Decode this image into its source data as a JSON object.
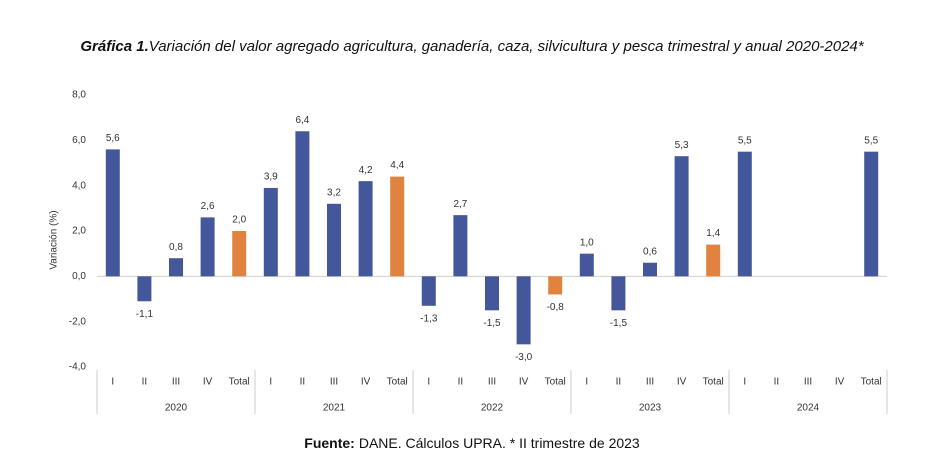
{
  "chart_data": {
    "type": "bar",
    "title_prefix": "Gráfica 1.",
    "title": "Variación del valor agregado agricultura, ganadería, caza, silvicultura y pesca trimestral y anual 2020-2024*",
    "ylabel": "Variación (%)",
    "source_prefix": "Fuente:",
    "source": "DANE. Cálculos UPRA. * II trimestre de 2023",
    "groups": [
      "2020",
      "2021",
      "2022",
      "2023",
      "2024"
    ],
    "categories": [
      "I",
      "II",
      "III",
      "IV",
      "Total",
      "I",
      "II",
      "III",
      "IV",
      "Total",
      "I",
      "II",
      "III",
      "IV",
      "Total",
      "I",
      "II",
      "III",
      "IV",
      "Total",
      "I",
      "II",
      "III",
      "IV",
      "Total"
    ],
    "values": [
      5.6,
      -1.1,
      0.8,
      2.6,
      2.0,
      3.9,
      6.4,
      3.2,
      4.2,
      4.4,
      -1.3,
      2.7,
      -1.5,
      -3.0,
      -0.8,
      1.0,
      -1.5,
      0.6,
      5.3,
      1.4,
      5.5,
      null,
      null,
      null,
      5.5
    ],
    "value_labels": [
      "5,6",
      "-1,1",
      "0,8",
      "2,6",
      "2,0",
      "3,9",
      "6,4",
      "3,2",
      "4,2",
      "4,4",
      "-1,3",
      "2,7",
      "-1,5",
      "-3,0",
      "-0,8",
      "1,0",
      "-1,5",
      "0,6",
      "5,3",
      "1,4",
      "5,5",
      null,
      null,
      null,
      "5,5"
    ],
    "colors": [
      "#44579a",
      "#44579a",
      "#44579a",
      "#44579a",
      "#e0833e",
      "#44579a",
      "#44579a",
      "#44579a",
      "#44579a",
      "#e0833e",
      "#44579a",
      "#44579a",
      "#44579a",
      "#44579a",
      "#e0833e",
      "#44579a",
      "#44579a",
      "#44579a",
      "#44579a",
      "#e0833e",
      "#44579a",
      "#44579a",
      "#44579a",
      "#44579a",
      "#44579a"
    ],
    "ylim": [
      -4,
      8
    ],
    "yticks": [
      {
        "value": -4,
        "label": "-4,0"
      },
      {
        "value": -2,
        "label": "-2,0"
      },
      {
        "value": 0,
        "label": "0,0"
      },
      {
        "value": 2,
        "label": "2,0"
      },
      {
        "value": 4,
        "label": "4,0"
      },
      {
        "value": 6,
        "label": "6,0"
      },
      {
        "value": 8,
        "label": "8,0"
      }
    ],
    "grid": false
  }
}
